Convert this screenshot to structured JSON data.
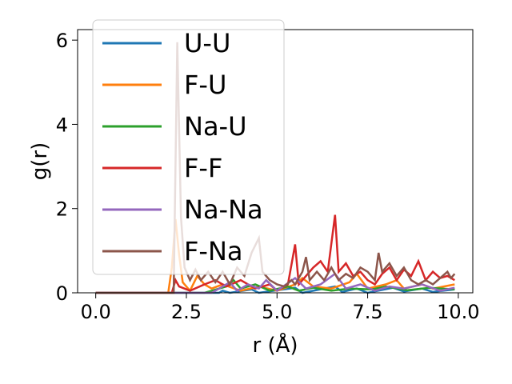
{
  "chart_data": {
    "type": "line",
    "title": "",
    "xlabel": "r (Å)",
    "ylabel": "g(r)",
    "xlim": [
      -0.5,
      10.4
    ],
    "ylim": [
      0,
      6.25
    ],
    "xticks": [
      "0.0",
      "2.5",
      "5.0",
      "7.5",
      "10.0"
    ],
    "xtick_values": [
      0,
      2.5,
      5,
      7.5,
      10
    ],
    "yticks": [
      "0",
      "2",
      "4",
      "6"
    ],
    "ytick_values": [
      0,
      2,
      4,
      6
    ],
    "grid": false,
    "legend_placement": "upper-left",
    "series": [
      {
        "name": "U-U",
        "color": "#1f77b4",
        "points": [
          [
            0,
            0
          ],
          [
            3.4,
            0
          ],
          [
            3.5,
            0.05
          ],
          [
            3.7,
            0
          ],
          [
            4.3,
            0.08
          ],
          [
            4.5,
            0
          ],
          [
            5.5,
            0.12
          ],
          [
            5.7,
            0
          ],
          [
            6.6,
            0.15
          ],
          [
            6.8,
            0.02
          ],
          [
            7.2,
            0.1
          ],
          [
            7.5,
            0
          ],
          [
            8.2,
            0.12
          ],
          [
            8.5,
            0.03
          ],
          [
            9.0,
            0.1
          ],
          [
            9.3,
            0.02
          ],
          [
            9.9,
            0.08
          ]
        ]
      },
      {
        "name": "F-U",
        "color": "#ff7f0e",
        "points": [
          [
            0,
            0
          ],
          [
            2.0,
            0
          ],
          [
            2.1,
            0.6
          ],
          [
            2.2,
            1.75
          ],
          [
            2.3,
            0.9
          ],
          [
            2.4,
            0.25
          ],
          [
            2.6,
            0.05
          ],
          [
            2.8,
            0.4
          ],
          [
            3.0,
            0.2
          ],
          [
            3.2,
            0.1
          ],
          [
            3.5,
            0.2
          ],
          [
            4.0,
            0.05
          ],
          [
            4.5,
            0.15
          ],
          [
            5.0,
            0.05
          ],
          [
            5.5,
            0.2
          ],
          [
            5.7,
            0.35
          ],
          [
            6.0,
            0.15
          ],
          [
            6.5,
            0.1
          ],
          [
            7.0,
            0.25
          ],
          [
            7.2,
            0.45
          ],
          [
            7.5,
            0.1
          ],
          [
            8.0,
            0.2
          ],
          [
            8.3,
            0.3
          ],
          [
            8.5,
            0.1
          ],
          [
            9.0,
            0.2
          ],
          [
            9.3,
            0.1
          ],
          [
            9.6,
            0.15
          ],
          [
            9.9,
            0.2
          ]
        ]
      },
      {
        "name": "Na-U",
        "color": "#2ca02c",
        "points": [
          [
            0,
            0
          ],
          [
            3.0,
            0
          ],
          [
            3.2,
            0.05
          ],
          [
            3.6,
            0.15
          ],
          [
            3.8,
            0.3
          ],
          [
            4.0,
            0.1
          ],
          [
            4.4,
            0.2
          ],
          [
            4.8,
            0.05
          ],
          [
            5.3,
            0.15
          ],
          [
            5.6,
            0.05
          ],
          [
            6.0,
            0.12
          ],
          [
            6.5,
            0.05
          ],
          [
            7.0,
            0.1
          ],
          [
            7.6,
            0.08
          ],
          [
            8.0,
            0.15
          ],
          [
            8.6,
            0.06
          ],
          [
            9.2,
            0.12
          ],
          [
            9.9,
            0.08
          ]
        ]
      },
      {
        "name": "F-F",
        "color": "#d62728",
        "points": [
          [
            0,
            0
          ],
          [
            2.1,
            0
          ],
          [
            2.2,
            0.3
          ],
          [
            2.3,
            0.15
          ],
          [
            2.6,
            0.05
          ],
          [
            3.0,
            0.2
          ],
          [
            3.3,
            0.3
          ],
          [
            3.6,
            0.15
          ],
          [
            4.0,
            0.3
          ],
          [
            4.4,
            0.1
          ],
          [
            4.8,
            0.2
          ],
          [
            5.0,
            0.05
          ],
          [
            5.3,
            0.2
          ],
          [
            5.5,
            1.15
          ],
          [
            5.6,
            0.2
          ],
          [
            5.8,
            0.4
          ],
          [
            6.0,
            0.6
          ],
          [
            6.2,
            0.75
          ],
          [
            6.4,
            0.5
          ],
          [
            6.6,
            1.85
          ],
          [
            6.7,
            0.5
          ],
          [
            6.9,
            0.7
          ],
          [
            7.1,
            0.4
          ],
          [
            7.3,
            0.5
          ],
          [
            7.5,
            0.3
          ],
          [
            7.7,
            0.2
          ],
          [
            7.9,
            0.45
          ],
          [
            8.1,
            0.6
          ],
          [
            8.3,
            0.3
          ],
          [
            8.5,
            0.55
          ],
          [
            8.7,
            0.4
          ],
          [
            8.9,
            0.75
          ],
          [
            9.1,
            0.3
          ],
          [
            9.3,
            0.5
          ],
          [
            9.5,
            0.35
          ],
          [
            9.7,
            0.4
          ],
          [
            9.9,
            0.3
          ]
        ]
      },
      {
        "name": "Na-Na",
        "color": "#9467bd",
        "points": [
          [
            0,
            0
          ],
          [
            3.2,
            0
          ],
          [
            3.4,
            0.1
          ],
          [
            3.7,
            0.25
          ],
          [
            3.9,
            0.05
          ],
          [
            4.2,
            0.2
          ],
          [
            4.5,
            0.1
          ],
          [
            4.7,
            0.3
          ],
          [
            5.0,
            0.05
          ],
          [
            5.5,
            0.35
          ],
          [
            5.8,
            0.1
          ],
          [
            6.2,
            0.2
          ],
          [
            6.6,
            0.45
          ],
          [
            6.9,
            0.1
          ],
          [
            7.3,
            0.2
          ],
          [
            7.7,
            0.05
          ],
          [
            8.1,
            0.15
          ],
          [
            8.5,
            0.1
          ],
          [
            9.0,
            0.2
          ],
          [
            9.5,
            0.05
          ],
          [
            9.9,
            0.12
          ]
        ]
      },
      {
        "name": "F-Na",
        "color": "#8c564b",
        "points": [
          [
            0,
            0
          ],
          [
            2.15,
            0
          ],
          [
            2.25,
            5.95
          ],
          [
            2.35,
            1.8
          ],
          [
            2.45,
            0.6
          ],
          [
            2.6,
            0.3
          ],
          [
            2.75,
            0.55
          ],
          [
            2.9,
            0.3
          ],
          [
            3.1,
            0.5
          ],
          [
            3.3,
            0.25
          ],
          [
            3.5,
            0.5
          ],
          [
            3.7,
            0.2
          ],
          [
            3.9,
            0.6
          ],
          [
            4.1,
            0.4
          ],
          [
            4.3,
            0.95
          ],
          [
            4.5,
            1.3
          ],
          [
            4.6,
            0.5
          ],
          [
            4.8,
            0.3
          ],
          [
            5.0,
            0.2
          ],
          [
            5.2,
            0.15
          ],
          [
            5.4,
            0.3
          ],
          [
            5.5,
            0.2
          ],
          [
            5.7,
            0.5
          ],
          [
            5.8,
            0.85
          ],
          [
            5.9,
            0.3
          ],
          [
            6.1,
            0.5
          ],
          [
            6.3,
            0.3
          ],
          [
            6.5,
            0.6
          ],
          [
            6.7,
            0.3
          ],
          [
            6.9,
            0.45
          ],
          [
            7.1,
            0.35
          ],
          [
            7.3,
            0.6
          ],
          [
            7.5,
            0.5
          ],
          [
            7.7,
            0.3
          ],
          [
            7.8,
            0.95
          ],
          [
            7.9,
            0.5
          ],
          [
            8.1,
            0.7
          ],
          [
            8.3,
            0.4
          ],
          [
            8.5,
            0.6
          ],
          [
            8.7,
            0.3
          ],
          [
            8.9,
            0.2
          ],
          [
            9.1,
            0.3
          ],
          [
            9.3,
            0.2
          ],
          [
            9.5,
            0.35
          ],
          [
            9.7,
            0.5
          ],
          [
            9.8,
            0.35
          ],
          [
            9.9,
            0.45
          ]
        ]
      }
    ]
  }
}
